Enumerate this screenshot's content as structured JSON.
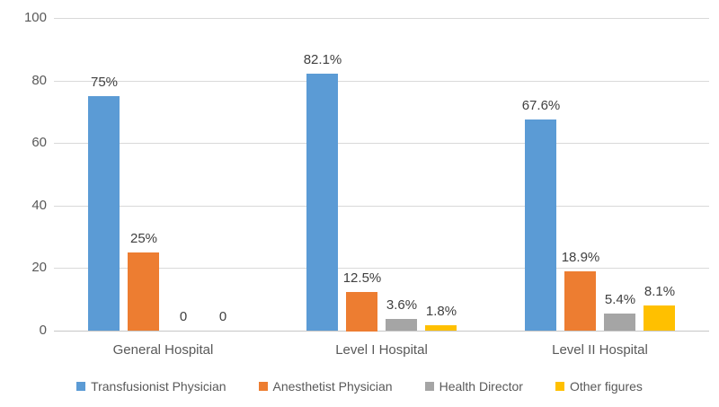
{
  "chart_data": {
    "type": "bar",
    "title": "",
    "xlabel": "",
    "ylabel": "",
    "categories": [
      "General Hospital",
      "Level I Hospital",
      "Level II Hospital"
    ],
    "series": [
      {
        "name": "Transfusionist Physician",
        "color": "#5B9BD5",
        "values": [
          75,
          82.1,
          67.6
        ],
        "labels": [
          "75%",
          "82.1%",
          "67.6%"
        ]
      },
      {
        "name": "Anesthetist Physician",
        "color": "#ED7D31",
        "values": [
          25,
          12.5,
          18.9
        ],
        "labels": [
          "25%",
          "12.5%",
          "18.9%"
        ]
      },
      {
        "name": "Health Director",
        "color": "#A5A5A5",
        "values": [
          0,
          3.6,
          5.4
        ],
        "labels": [
          "0",
          "3.6%",
          "5.4%"
        ]
      },
      {
        "name": "Other figures",
        "color": "#FFC000",
        "values": [
          0,
          1.8,
          8.1
        ],
        "labels": [
          "0",
          "1.8%",
          "8.1%"
        ]
      }
    ],
    "y_axis": {
      "min": 0,
      "max": 100,
      "step": 20,
      "tick_labels": [
        "0",
        "20",
        "40",
        "60",
        "80",
        "100"
      ]
    },
    "grid": true,
    "legend_position": "bottom",
    "colors": {
      "gridline": "#D9D9D9",
      "axis_line": "#C6C6C6",
      "tick_text": "#595959",
      "data_label_text": "#404040",
      "background": "#FFFFFF"
    }
  }
}
